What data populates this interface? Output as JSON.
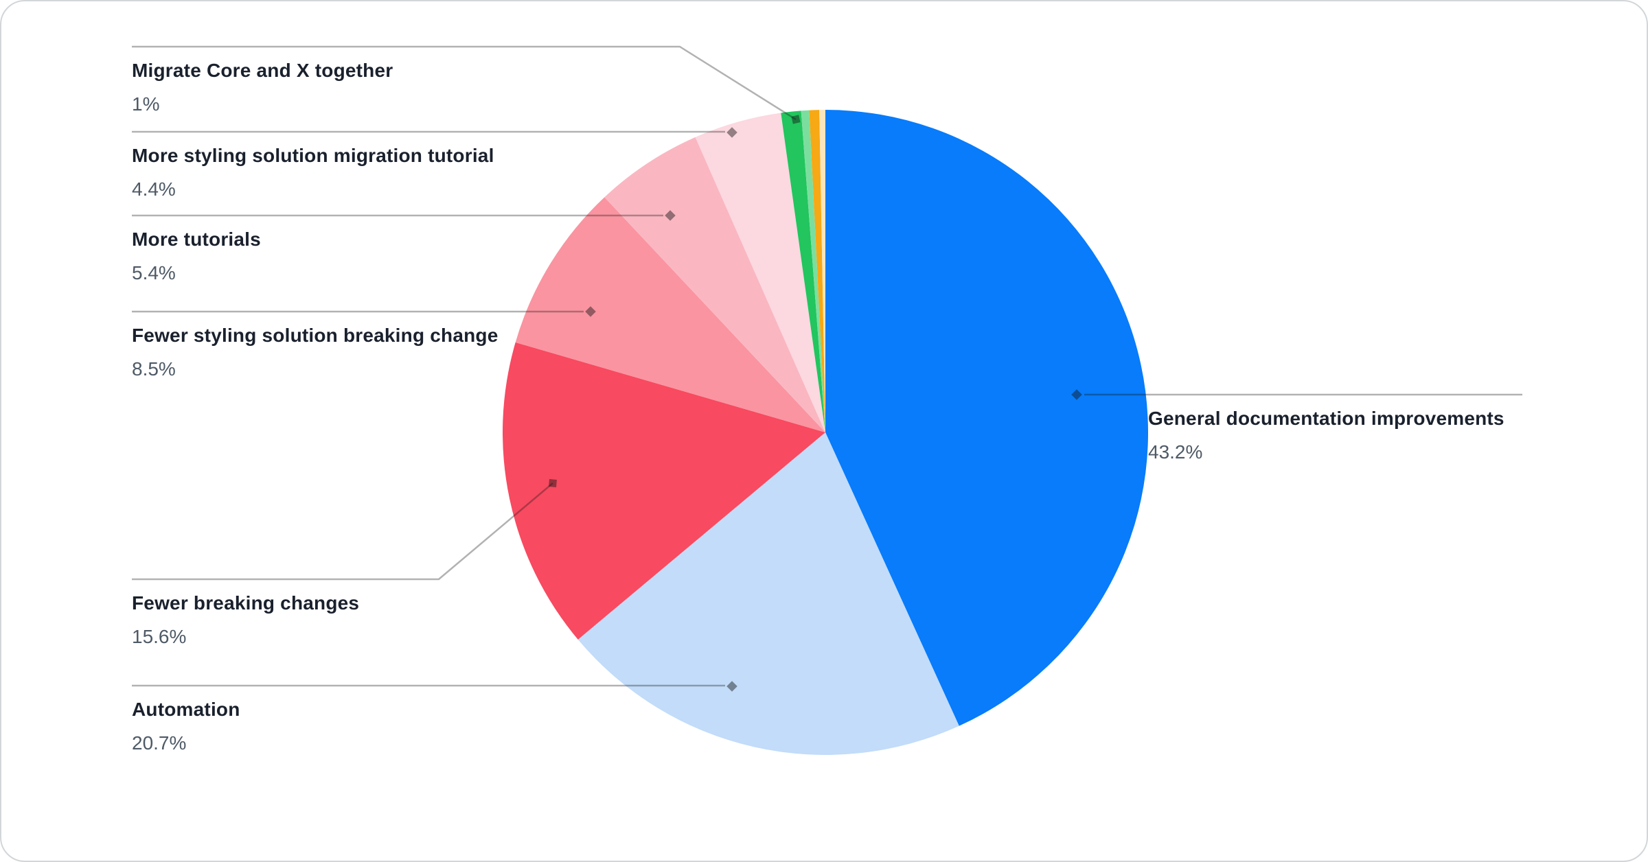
{
  "chart_data": {
    "type": "pie",
    "title": "",
    "legend_position": "none",
    "start_angle_deg": 0,
    "direction": "clockwise",
    "slices": [
      {
        "label": "General documentation improvements",
        "pct_label": "43.2%",
        "value": 43.2,
        "color": "#087cfb"
      },
      {
        "label": "Automation",
        "pct_label": "20.7%",
        "value": 20.7,
        "color": "#c2dcf9"
      },
      {
        "label": "Fewer breaking changes",
        "pct_label": "15.6%",
        "value": 15.6,
        "color": "#f84a60"
      },
      {
        "label": "Fewer styling solution breaking change",
        "pct_label": "8.5%",
        "value": 8.5,
        "color": "#fa94a0"
      },
      {
        "label": "More tutorials",
        "pct_label": "5.4%",
        "value": 5.4,
        "color": "#fab7c1"
      },
      {
        "label": "More styling solution migration tutorial",
        "pct_label": "4.4%",
        "value": 4.4,
        "color": "#fcd8e0"
      },
      {
        "label": "Migrate Core and X together",
        "pct_label": "1%",
        "value": 1.0,
        "color": "#22c55e"
      },
      {
        "label": "",
        "pct_label": "",
        "value": 0.4,
        "color": "#7cde9e"
      },
      {
        "label": "",
        "pct_label": "",
        "value": 0.5,
        "color": "#f7a815"
      },
      {
        "label": "",
        "pct_label": "",
        "value": 0.3,
        "color": "#fbe5bc"
      }
    ],
    "colors": {
      "leader_line": "rgba(20,20,20,0.33)",
      "marker": "rgba(20,20,20,0.45)",
      "title_text": "#1a212d",
      "pct_text": "#4e5a66",
      "canvas_bg": "#ffffff"
    }
  }
}
